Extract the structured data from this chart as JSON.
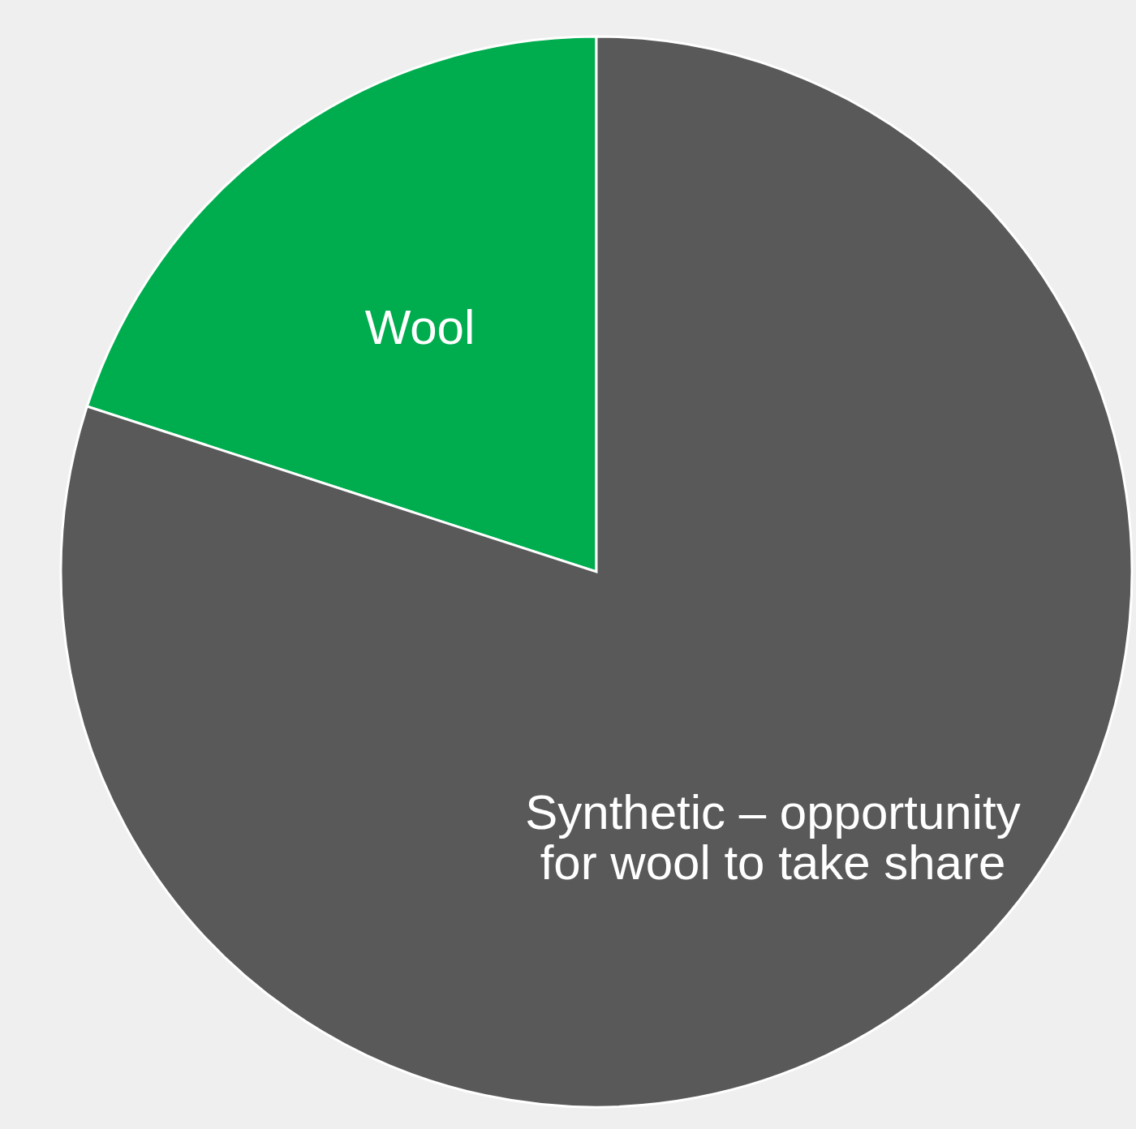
{
  "chart_data": {
    "type": "pie",
    "categories": [
      "Wool",
      "Synthetic – opportunity\nfor wool to take share"
    ],
    "values": [
      20,
      80
    ],
    "colors": [
      "#00ad4e",
      "#595959"
    ],
    "legend": false,
    "data_labels": false
  }
}
